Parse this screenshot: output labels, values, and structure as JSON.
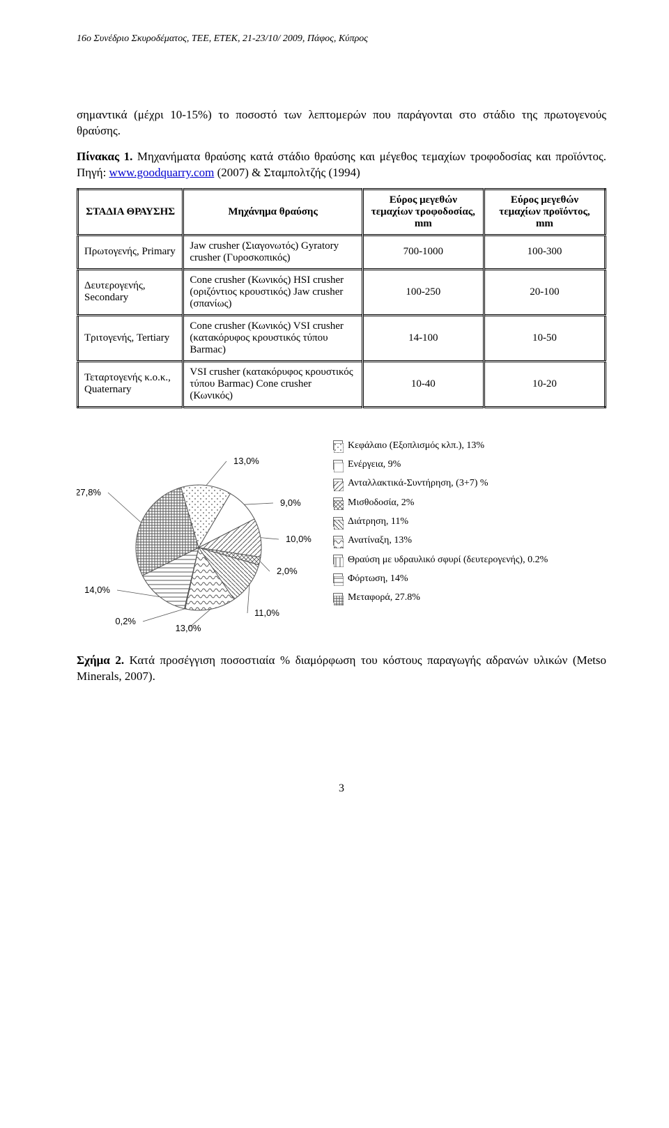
{
  "header": "16ο Συνέδριο Σκυροδέματος, ΤΕΕ, ΕΤΕΚ, 21-23/10/ 2009, Πάφος, Κύπρος",
  "intro_para": "σημαντικά (μέχρι 10-15%) το ποσοστό των λεπτομερών που παράγονται στο στάδιο της πρωτογενούς θραύσης.",
  "table_caption_prefix": "Πίνακας 1.",
  "table_caption_body": " Μηχανήματα θραύσης κατά στάδιο θραύσης και μέγεθος τεμαχίων τροφοδοσίας και προϊόντος. Πηγή: ",
  "table_caption_link": "www.goodquarry.com",
  "table_caption_tail": " (2007) & Σταμπολτζής (1994)",
  "table": {
    "headers": [
      "ΣΤΑΔΙΑ ΘΡΑΥΣΗΣ",
      "Μηχάνημα θραύσης",
      "Εύρος μεγεθών τεμαχίων τροφοδοσίας, mm",
      "Εύρος μεγεθών τεμαχίων προϊόντος, mm"
    ],
    "rows": [
      {
        "stage": "Πρωτογενής, Primary",
        "machine": "Jaw crusher (Σιαγονωτός)\nGyratory crusher (Γυροσκοπικός)",
        "feed": "700-1000",
        "prod": "100-300"
      },
      {
        "stage": "Δευτερογενής, Secondary",
        "machine": "Cone crusher (Κωνικός)\nHSI crusher (οριζόντιος κρουστικός)\nJaw crusher (σπανίως)",
        "feed": "100-250",
        "prod": "20-100"
      },
      {
        "stage": "Τριτογενής, Tertiary",
        "machine": "Cone crusher (Κωνικός)\nVSI crusher (κατακόρυφος κρουστικός τύπου Barmac)",
        "feed": "14-100",
        "prod": "10-50"
      },
      {
        "stage": "Τεταρτογενής κ.ο.κ., Quaternary",
        "machine": "VSI crusher (κατακόρυφος κρουστικός τύπου Barmac)\nCone crusher (Κωνικός)",
        "feed": "10-40",
        "prod": "10-20"
      }
    ]
  },
  "pie": {
    "type": "pie",
    "slices": [
      {
        "key": "capital",
        "label_chart": "13,0%",
        "value": 13.0,
        "legend": "Κεφάλαιο (Εξοπλισμός κλπ.), 13%"
      },
      {
        "key": "energy",
        "label_chart": "9,0%",
        "value": 9.0,
        "legend": "Ενέργεια, 9%"
      },
      {
        "key": "spares",
        "label_chart": "10,0%",
        "value": 10.0,
        "legend": "Ανταλλακτικά-Συντήρηση, (3+7) %"
      },
      {
        "key": "wages",
        "label_chart": "2,0%",
        "value": 2.0,
        "legend": "Μισθοδοσία, 2%"
      },
      {
        "key": "drilling",
        "label_chart": "11,0%",
        "value": 11.0,
        "legend": "Διάτρηση, 11%"
      },
      {
        "key": "blasting",
        "label_chart": "13,0%",
        "value": 13.0,
        "legend": "Ανατίναξη, 13%"
      },
      {
        "key": "secondary",
        "label_chart": "0,2%",
        "value": 0.2,
        "legend": "Θραύση με υδραυλικό σφυρί (δευτερογενής), 0.2%"
      },
      {
        "key": "loading",
        "label_chart": "14,0%",
        "value": 14.0,
        "legend": "Φόρτωση, 14%"
      },
      {
        "key": "transport",
        "label_chart": "27,8%",
        "value": 27.8,
        "legend": "Μεταφορά, 27.8%"
      }
    ],
    "colors": {
      "background": "#ffffff",
      "stroke": "#555555",
      "label_font": "Arial",
      "label_fontsize": 13
    }
  },
  "fig_caption_prefix": "Σχήμα 2.",
  "fig_caption_body": " Κατά προσέγγιση ποσοστιαία % διαμόρφωση του κόστους παραγωγής αδρανών υλικών (Metso Minerals, 2007).",
  "page_number": "3"
}
